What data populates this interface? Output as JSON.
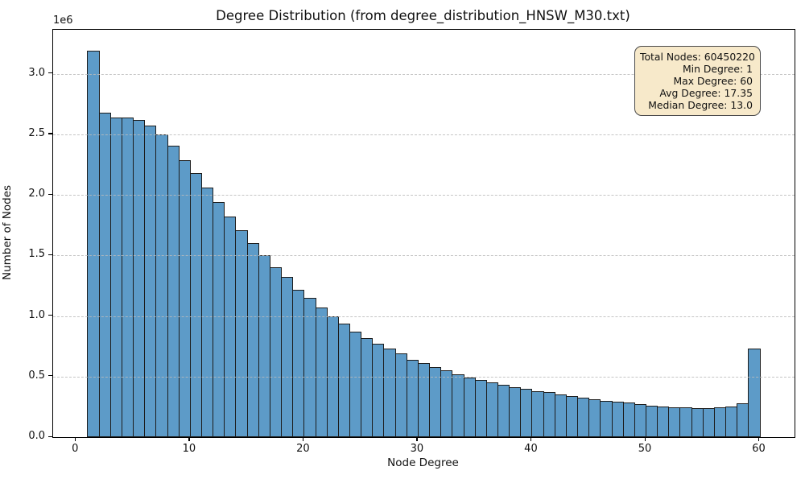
{
  "figure": {
    "title": "Degree Distribution (from degree_distribution_HNSW_M30.txt)",
    "xlabel": "Node Degree",
    "ylabel": "Number of Nodes",
    "y_offset_label": "1e6"
  },
  "stats_box": {
    "lines": [
      "Total Nodes: 60450220",
      "Min Degree: 1",
      "Max Degree: 60",
      "Avg Degree: 17.35",
      "Median Degree: 13.0"
    ]
  },
  "colors": {
    "bar_fill": "#5d9bc8",
    "bar_edge": "#1c1c1c",
    "grid": "#bbbbbb",
    "spine": "#000000",
    "stats_bg": "#f7e9ca",
    "stats_border": "#4a4a4a"
  },
  "chart_data": {
    "type": "bar",
    "title": "Degree Distribution (from degree_distribution_HNSW_M30.txt)",
    "xlabel": "Node Degree",
    "ylabel": "Number of Nodes",
    "y_unit_multiplier": "1e6",
    "bin_width": 1,
    "degrees": [
      1,
      2,
      3,
      4,
      5,
      6,
      7,
      8,
      9,
      10,
      11,
      12,
      13,
      14,
      15,
      16,
      17,
      18,
      19,
      20,
      21,
      22,
      23,
      24,
      25,
      26,
      27,
      28,
      29,
      30,
      31,
      32,
      33,
      34,
      35,
      36,
      37,
      38,
      39,
      40,
      41,
      42,
      43,
      44,
      45,
      46,
      47,
      48,
      49,
      50,
      51,
      52,
      53,
      54,
      55,
      56,
      57,
      58,
      59
    ],
    "counts_millions": [
      3.19,
      2.68,
      2.64,
      2.64,
      2.62,
      2.57,
      2.5,
      2.41,
      2.29,
      2.18,
      2.06,
      1.94,
      1.82,
      1.71,
      1.6,
      1.5,
      1.4,
      1.32,
      1.22,
      1.15,
      1.07,
      1.0,
      0.94,
      0.87,
      0.82,
      0.77,
      0.73,
      0.69,
      0.64,
      0.61,
      0.58,
      0.55,
      0.52,
      0.49,
      0.47,
      0.45,
      0.43,
      0.41,
      0.4,
      0.38,
      0.37,
      0.355,
      0.34,
      0.325,
      0.315,
      0.3,
      0.295,
      0.285,
      0.27,
      0.262,
      0.254,
      0.247,
      0.243,
      0.24,
      0.237,
      0.245,
      0.254,
      0.277,
      0.733
    ],
    "xticks": [
      0,
      10,
      20,
      30,
      40,
      50,
      60
    ],
    "yticks_millions": [
      0.0,
      0.5,
      1.0,
      1.5,
      2.0,
      2.5,
      3.0
    ],
    "xlim": [
      -2,
      63.07
    ],
    "ylim_millions": [
      0,
      3.364
    ],
    "grid": "horizontal dashed, drawn above bars",
    "legend_position": "stats box top-right"
  }
}
